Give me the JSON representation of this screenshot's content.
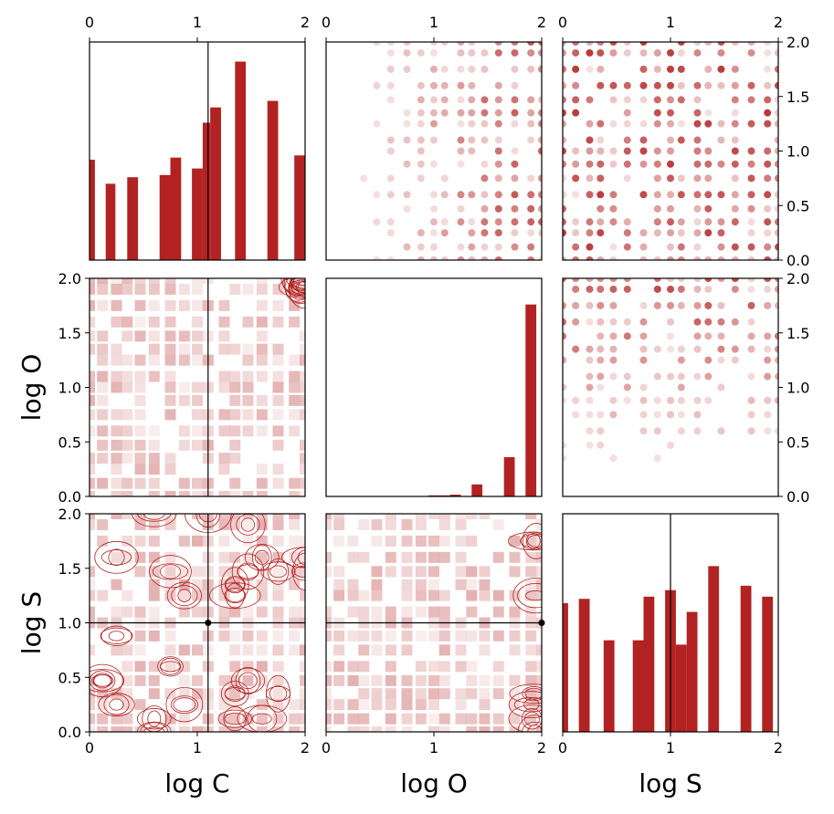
{
  "chart_data": {
    "type": "pair-grid",
    "variables": [
      "log C",
      "log O",
      "log S"
    ],
    "axis_range": [
      0,
      2
    ],
    "ticks": [
      "0",
      "1",
      "2"
    ],
    "yticks_offdiag": [
      "0.0",
      "0.5",
      "1.0",
      "1.5",
      "2.0"
    ],
    "xlabels": [
      "log C",
      "log O",
      "log S"
    ],
    "ylabels": [
      "log O",
      "log S"
    ],
    "color": "#b22222",
    "reference_point": {
      "log C": 1.1,
      "log S": 1.0
    },
    "hist_log_C": {
      "bins": [
        [
          0.0,
          0.05
        ],
        [
          0.15,
          0.24
        ],
        [
          0.35,
          0.45
        ],
        [
          0.65,
          0.75
        ],
        [
          0.75,
          0.85
        ],
        [
          0.95,
          1.05
        ],
        [
          1.05,
          1.12
        ],
        [
          1.12,
          1.22
        ],
        [
          1.35,
          1.45
        ],
        [
          1.65,
          1.75
        ],
        [
          1.9,
          2.0
        ]
      ],
      "heights": [
        0.46,
        0.35,
        0.38,
        0.39,
        0.47,
        0.42,
        0.63,
        0.7,
        0.91,
        0.73,
        0.48
      ]
    },
    "hist_log_O": {
      "bins": [
        [
          0.95,
          1.05
        ],
        [
          1.05,
          1.15
        ],
        [
          1.15,
          1.25
        ],
        [
          1.35,
          1.45
        ],
        [
          1.65,
          1.75
        ],
        [
          1.85,
          1.95
        ]
      ],
      "heights": [
        0.005,
        0.005,
        0.008,
        0.055,
        0.18,
        0.88
      ]
    },
    "hist_log_S": {
      "bins": [
        [
          0.0,
          0.05
        ],
        [
          0.15,
          0.25
        ],
        [
          0.38,
          0.48
        ],
        [
          0.65,
          0.75
        ],
        [
          0.75,
          0.85
        ],
        [
          0.95,
          1.05
        ],
        [
          1.05,
          1.15
        ],
        [
          1.15,
          1.25
        ],
        [
          1.35,
          1.45
        ],
        [
          1.65,
          1.75
        ],
        [
          1.85,
          1.95
        ]
      ],
      "heights": [
        0.59,
        0.61,
        0.42,
        0.42,
        0.62,
        0.65,
        0.4,
        0.55,
        0.76,
        0.67,
        0.62
      ]
    }
  }
}
